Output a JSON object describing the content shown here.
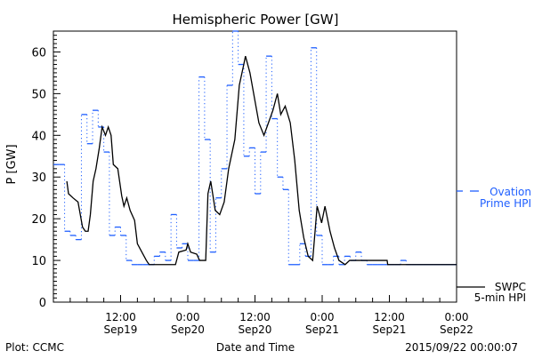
{
  "chart_data": {
    "type": "line",
    "title": "Hemispheric Power [GW]",
    "xlabel": "Date and Time",
    "ylabel": "P [GW]",
    "xlim_hours": [
      0,
      72
    ],
    "ylim": [
      0,
      65
    ],
    "yticks": [
      0,
      10,
      20,
      30,
      40,
      50,
      60
    ],
    "xticks": [
      {
        "hour": 12,
        "time": "12:00",
        "date": "Sep19"
      },
      {
        "hour": 24,
        "time": "0:00",
        "date": "Sep20"
      },
      {
        "hour": 36,
        "time": "12:00",
        "date": "Sep20"
      },
      {
        "hour": 48,
        "time": "0:00",
        "date": "Sep21"
      },
      {
        "hour": 60,
        "time": "12:00",
        "date": "Sep21"
      },
      {
        "hour": 72,
        "time": "0:00",
        "date": "Sep22"
      }
    ],
    "series": [
      {
        "name": "Ovation Prime HPI",
        "legend_lines": [
          "Ovation",
          "Prime HPI"
        ],
        "color": "#1f5fff",
        "style": "hourly-steps-dotted-risers",
        "hourly_values": [
          33,
          33,
          17,
          16,
          15,
          45,
          38,
          46,
          42,
          36,
          16,
          18,
          16,
          10,
          9,
          9,
          9,
          9,
          11,
          12,
          10,
          21,
          13,
          14,
          10,
          10,
          54,
          39,
          12,
          25,
          32,
          52,
          65,
          57,
          35,
          37,
          26,
          36,
          59,
          44,
          30,
          27,
          9,
          9,
          14,
          11,
          61,
          16,
          9,
          9,
          11,
          9,
          11,
          10,
          12,
          10,
          9,
          9,
          9,
          9,
          9,
          9,
          10,
          9,
          9,
          9,
          9,
          9,
          9,
          9,
          9,
          9
        ]
      },
      {
        "name": "SWPC 5-min HPI",
        "legend_lines": [
          "SWPC",
          "5-min HPI"
        ],
        "color": "#000000",
        "style": "solid",
        "points": [
          [
            2.4,
            29
          ],
          [
            2.7,
            26
          ],
          [
            3.5,
            25
          ],
          [
            4.4,
            24
          ],
          [
            5.2,
            18
          ],
          [
            5.7,
            17
          ],
          [
            6.2,
            17
          ],
          [
            6.6,
            21
          ],
          [
            7.1,
            29
          ],
          [
            7.6,
            32
          ],
          [
            8.2,
            37
          ],
          [
            8.7,
            42
          ],
          [
            9.3,
            40
          ],
          [
            9.8,
            42
          ],
          [
            10.3,
            40
          ],
          [
            10.7,
            33
          ],
          [
            11.5,
            32
          ],
          [
            12.2,
            25.5
          ],
          [
            12.6,
            23
          ],
          [
            13.1,
            25
          ],
          [
            13.7,
            22
          ],
          [
            14.5,
            19.6
          ],
          [
            15.0,
            14
          ],
          [
            15.8,
            12
          ],
          [
            16.6,
            10
          ],
          [
            17.1,
            9
          ],
          [
            21.8,
            9
          ],
          [
            22.4,
            12
          ],
          [
            23.7,
            12.5
          ],
          [
            24.0,
            14
          ],
          [
            24.5,
            12
          ],
          [
            25.6,
            11.5
          ],
          [
            26.1,
            10
          ],
          [
            27.2,
            10
          ],
          [
            27.6,
            26
          ],
          [
            28.1,
            29
          ],
          [
            28.9,
            22
          ],
          [
            29.7,
            21
          ],
          [
            30.5,
            24
          ],
          [
            31.3,
            32
          ],
          [
            32.4,
            39
          ],
          [
            33.2,
            52
          ],
          [
            34.0,
            57
          ],
          [
            34.3,
            59
          ],
          [
            35.1,
            55
          ],
          [
            35.9,
            49
          ],
          [
            36.7,
            43
          ],
          [
            37.6,
            40
          ],
          [
            38.4,
            43
          ],
          [
            39.2,
            46
          ],
          [
            40.0,
            50
          ],
          [
            40.6,
            45
          ],
          [
            41.4,
            47
          ],
          [
            42.3,
            43
          ],
          [
            43.1,
            34
          ],
          [
            43.9,
            22
          ],
          [
            44.7,
            15.5
          ],
          [
            45.5,
            11
          ],
          [
            46.3,
            10
          ],
          [
            47.1,
            23
          ],
          [
            47.9,
            19
          ],
          [
            48.5,
            23
          ],
          [
            49.4,
            17
          ],
          [
            50.2,
            13
          ],
          [
            51.0,
            10
          ],
          [
            52.1,
            9
          ],
          [
            52.9,
            10
          ],
          [
            53.7,
            10
          ],
          [
            59.6,
            10
          ],
          [
            59.7,
            9
          ],
          [
            72,
            9
          ]
        ]
      }
    ]
  },
  "footer": {
    "left": "Plot: CCMC",
    "center": "Date and Time",
    "right": "2015/09/22 00:00:07"
  }
}
